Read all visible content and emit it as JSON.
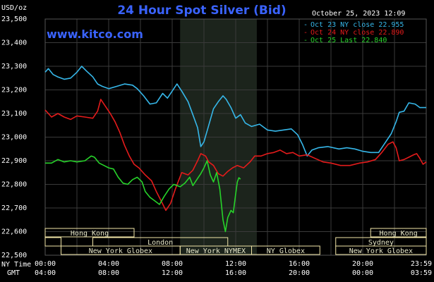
{
  "header": {
    "title": "24 Hour Spot Silver (Bid)",
    "timestamp": "October 25, 2023 12:09",
    "brand": "www.kitco.com"
  },
  "colors": {
    "background": "#000000",
    "grid": "#3a3a3a",
    "highlight": "#1c241c",
    "oct23": "#36b7e9",
    "oct24": "#e41b1b",
    "oct25": "#27d32a",
    "session_box": "#f2e6a8",
    "title": "#3a63ff"
  },
  "sessions": {
    "rows": [
      [
        {
          "label": "Hong Kong",
          "from": 0,
          "to": 5.6
        },
        {
          "label": "Hong Kong",
          "from": 20.5,
          "to": 24
        }
      ],
      [
        {
          "label": "",
          "from": 0,
          "to": 1
        },
        {
          "label": "London",
          "from": 3,
          "to": 11.5
        },
        {
          "label": "Sydney",
          "from": 18.3,
          "to": 24
        }
      ],
      [
        {
          "label": "New York Globex",
          "from": 1,
          "to": 8.5
        },
        {
          "label": "New York NYMEX",
          "from": 8.5,
          "to": 13
        },
        {
          "label": "NY Globex",
          "from": 13,
          "to": 17.3
        },
        {
          "label": "New York Globex",
          "from": 18.3,
          "to": 24
        }
      ]
    ]
  },
  "bottom_axis": {
    "ny_time_label": "NY Time",
    "gmt_label": "GMT",
    "ny_ticks": [
      "00:00",
      "04:00",
      "08:00",
      "12:00",
      "16:00",
      "20:00",
      "23:59"
    ],
    "gmt_ticks": [
      "04:00",
      "08:00",
      "12:00",
      "16:00",
      "20:00",
      "00:00",
      "03:59"
    ]
  },
  "chart_data": {
    "type": "line",
    "title": "24 Hour Spot Silver (Bid)",
    "ylabel": "USD/oz",
    "x_unit": "hours (NY time)",
    "xlim": [
      0,
      24
    ],
    "ylim": [
      22500,
      23500
    ],
    "y_ticks": [
      "22,500",
      "22,600",
      "22,700",
      "22,800",
      "22,900",
      "23,000",
      "23,100",
      "23,200",
      "23,300",
      "23,400",
      "23,500"
    ],
    "legend_position": "top-right",
    "highlight_range": [
      8.5,
      13.33
    ],
    "series": [
      {
        "name": "Oct 23 NY close 22.955",
        "color": "#36b7e9",
        "points": [
          [
            0,
            23275
          ],
          [
            0.2,
            23290
          ],
          [
            0.5,
            23265
          ],
          [
            0.8,
            23255
          ],
          [
            1.2,
            23245
          ],
          [
            1.6,
            23250
          ],
          [
            2,
            23275
          ],
          [
            2.3,
            23300
          ],
          [
            2.6,
            23280
          ],
          [
            3,
            23255
          ],
          [
            3.3,
            23225
          ],
          [
            3.6,
            23215
          ],
          [
            4,
            23205
          ],
          [
            4.5,
            23215
          ],
          [
            5,
            23225
          ],
          [
            5.5,
            23220
          ],
          [
            5.8,
            23205
          ],
          [
            6.2,
            23175
          ],
          [
            6.6,
            23140
          ],
          [
            7,
            23145
          ],
          [
            7.4,
            23185
          ],
          [
            7.7,
            23165
          ],
          [
            8,
            23195
          ],
          [
            8.3,
            23225
          ],
          [
            8.6,
            23195
          ],
          [
            9,
            23150
          ],
          [
            9.3,
            23095
          ],
          [
            9.6,
            23040
          ],
          [
            9.8,
            22960
          ],
          [
            10.0,
            22980
          ],
          [
            10.3,
            23050
          ],
          [
            10.6,
            23120
          ],
          [
            10.9,
            23150
          ],
          [
            11.2,
            23175
          ],
          [
            11.4,
            23160
          ],
          [
            11.7,
            23125
          ],
          [
            12,
            23080
          ],
          [
            12.3,
            23095
          ],
          [
            12.6,
            23060
          ],
          [
            13,
            23045
          ],
          [
            13.5,
            23055
          ],
          [
            14,
            23030
          ],
          [
            14.5,
            23025
          ],
          [
            15,
            23030
          ],
          [
            15.5,
            23035
          ],
          [
            15.9,
            23010
          ],
          [
            16.2,
            22970
          ],
          [
            16.5,
            22920
          ],
          [
            16.8,
            22945
          ],
          [
            17.2,
            22955
          ],
          [
            17.8,
            22960
          ],
          [
            18.5,
            22950
          ],
          [
            19,
            22955
          ],
          [
            19.5,
            22950
          ],
          [
            20,
            22940
          ],
          [
            20.5,
            22935
          ],
          [
            21,
            22935
          ],
          [
            21.4,
            22975
          ],
          [
            21.8,
            23015
          ],
          [
            22.1,
            23065
          ],
          [
            22.3,
            23105
          ],
          [
            22.6,
            23110
          ],
          [
            22.9,
            23145
          ],
          [
            23.3,
            23140
          ],
          [
            23.6,
            23125
          ],
          [
            24,
            23125
          ]
        ]
      },
      {
        "name": "Oct 24 NY close 22.890",
        "color": "#e41b1b",
        "points": [
          [
            0,
            23115
          ],
          [
            0.4,
            23085
          ],
          [
            0.8,
            23100
          ],
          [
            1.2,
            23085
          ],
          [
            1.6,
            23075
          ],
          [
            2,
            23090
          ],
          [
            2.5,
            23085
          ],
          [
            3,
            23080
          ],
          [
            3.3,
            23110
          ],
          [
            3.5,
            23160
          ],
          [
            3.8,
            23130
          ],
          [
            4.1,
            23100
          ],
          [
            4.4,
            23065
          ],
          [
            4.7,
            23020
          ],
          [
            5,
            22965
          ],
          [
            5.3,
            22920
          ],
          [
            5.6,
            22885
          ],
          [
            5.9,
            22870
          ],
          [
            6.3,
            22840
          ],
          [
            6.7,
            22815
          ],
          [
            7,
            22770
          ],
          [
            7.3,
            22730
          ],
          [
            7.6,
            22690
          ],
          [
            7.9,
            22720
          ],
          [
            8.2,
            22780
          ],
          [
            8.6,
            22850
          ],
          [
            9,
            22840
          ],
          [
            9.3,
            22860
          ],
          [
            9.6,
            22900
          ],
          [
            9.8,
            22930
          ],
          [
            10.1,
            22920
          ],
          [
            10.3,
            22895
          ],
          [
            10.6,
            22880
          ],
          [
            10.9,
            22845
          ],
          [
            11.2,
            22835
          ],
          [
            11.5,
            22855
          ],
          [
            11.8,
            22870
          ],
          [
            12.1,
            22880
          ],
          [
            12.5,
            22870
          ],
          [
            12.9,
            22895
          ],
          [
            13.2,
            22920
          ],
          [
            13.6,
            22920
          ],
          [
            14,
            22930
          ],
          [
            14.4,
            22935
          ],
          [
            14.8,
            22945
          ],
          [
            15.2,
            22930
          ],
          [
            15.6,
            22935
          ],
          [
            16,
            22920
          ],
          [
            16.5,
            22925
          ],
          [
            17,
            22910
          ],
          [
            17.5,
            22895
          ],
          [
            18,
            22890
          ],
          [
            18.6,
            22880
          ],
          [
            19.2,
            22880
          ],
          [
            19.8,
            22890
          ],
          [
            20.3,
            22895
          ],
          [
            20.8,
            22905
          ],
          [
            21.2,
            22935
          ],
          [
            21.6,
            22970
          ],
          [
            21.9,
            22980
          ],
          [
            22.1,
            22955
          ],
          [
            22.3,
            22900
          ],
          [
            22.6,
            22905
          ],
          [
            22.9,
            22915
          ],
          [
            23.2,
            22925
          ],
          [
            23.4,
            22930
          ],
          [
            23.6,
            22910
          ],
          [
            23.8,
            22885
          ],
          [
            24,
            22895
          ]
        ]
      },
      {
        "name": "Oct 25 Last 22.840",
        "color": "#27d32a",
        "points": [
          [
            0,
            22890
          ],
          [
            0.4,
            22890
          ],
          [
            0.8,
            22905
          ],
          [
            1.2,
            22895
          ],
          [
            1.6,
            22900
          ],
          [
            2,
            22895
          ],
          [
            2.5,
            22900
          ],
          [
            2.9,
            22920
          ],
          [
            3.1,
            22915
          ],
          [
            3.4,
            22890
          ],
          [
            3.7,
            22880
          ],
          [
            4,
            22870
          ],
          [
            4.3,
            22865
          ],
          [
            4.6,
            22830
          ],
          [
            4.9,
            22805
          ],
          [
            5.2,
            22800
          ],
          [
            5.5,
            22820
          ],
          [
            5.8,
            22830
          ],
          [
            6.1,
            22810
          ],
          [
            6.3,
            22770
          ],
          [
            6.6,
            22745
          ],
          [
            6.9,
            22730
          ],
          [
            7.2,
            22715
          ],
          [
            7.5,
            22750
          ],
          [
            7.8,
            22780
          ],
          [
            8.1,
            22800
          ],
          [
            8.5,
            22790
          ],
          [
            8.8,
            22805
          ],
          [
            9.1,
            22830
          ],
          [
            9.3,
            22795
          ],
          [
            9.6,
            22825
          ],
          [
            9.8,
            22845
          ],
          [
            10.0,
            22870
          ],
          [
            10.2,
            22900
          ],
          [
            10.4,
            22840
          ],
          [
            10.6,
            22810
          ],
          [
            10.8,
            22850
          ],
          [
            11.0,
            22780
          ],
          [
            11.2,
            22650
          ],
          [
            11.35,
            22600
          ],
          [
            11.5,
            22660
          ],
          [
            11.7,
            22690
          ],
          [
            11.85,
            22680
          ],
          [
            12.0,
            22760
          ],
          [
            12.1,
            22810
          ],
          [
            12.2,
            22828
          ],
          [
            12.3,
            22822
          ]
        ]
      }
    ]
  }
}
